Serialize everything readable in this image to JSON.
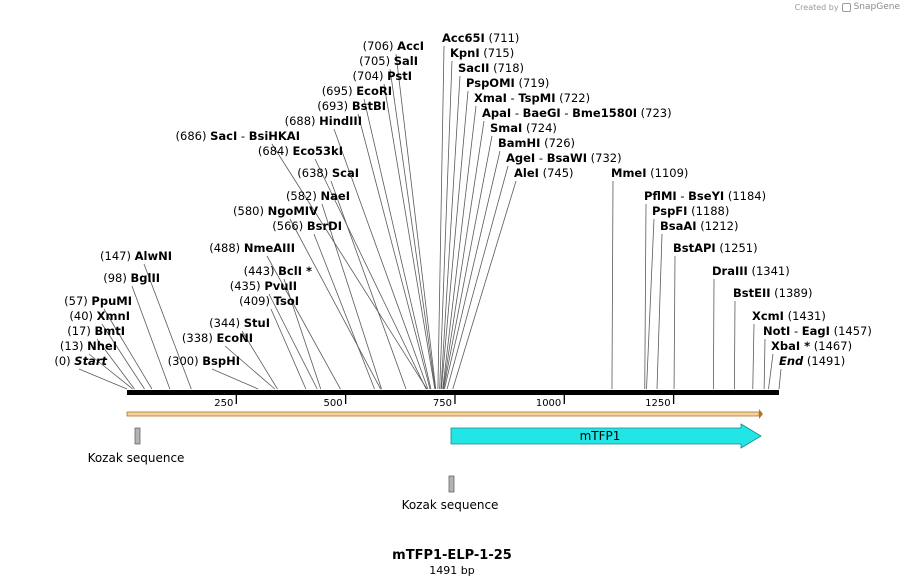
{
  "watermark": {
    "prefix": "Created by",
    "brand": "SnapGene"
  },
  "map": {
    "name": "mTFP1-ELP-1-25",
    "length_text": "1491 bp",
    "length": 1491,
    "ticks": [
      "250",
      "500",
      "750",
      "1000",
      "1250"
    ],
    "tick_values": [
      250,
      500,
      750,
      1000,
      1250
    ],
    "features": [
      {
        "label": "Kozak sequence",
        "start": 22,
        "end": 34,
        "type": "misc"
      },
      {
        "label": "mTFP1",
        "start": 745,
        "end": 1446,
        "type": "cds",
        "color": "#22e6e6"
      },
      {
        "label": "Kozak sequence",
        "start": 743,
        "end": 755,
        "type": "misc"
      }
    ],
    "colors": {
      "ruler": "#000000",
      "orf_fill": "#f5d3a0",
      "orf_line": "#b3742e",
      "misc_fill": "#b3b3b3"
    }
  },
  "sites": [
    {
      "pos": "(0)",
      "name": "Start",
      "italic": true,
      "bp": 0
    },
    {
      "pos": "(13)",
      "name": "NheI",
      "bp": 13
    },
    {
      "pos": "(17)",
      "name": "BmtI",
      "bp": 17
    },
    {
      "pos": "(40)",
      "name": "XmnI",
      "bp": 40
    },
    {
      "pos": "(57)",
      "name": "PpuMI",
      "bp": 57
    },
    {
      "pos": "(98)",
      "name": "BglII",
      "bp": 98
    },
    {
      "pos": "(147)",
      "name": "AlwNI",
      "bp": 147
    },
    {
      "pos": "(300)",
      "name": "BspHI",
      "bp": 300
    },
    {
      "pos": "(338)",
      "name": "EcoNI",
      "bp": 338
    },
    {
      "pos": "(344)",
      "name": "StuI",
      "bp": 344
    },
    {
      "pos": "(409)",
      "name": "TsoI",
      "bp": 409
    },
    {
      "pos": "(435)",
      "name": "PvuII",
      "bp": 435
    },
    {
      "pos": "(443)",
      "name": "BclI *",
      "bp": 443
    },
    {
      "pos": "(488)",
      "name": "NmeAIII",
      "bp": 488
    },
    {
      "pos": "(566)",
      "name": "BsrDI",
      "bp": 566
    },
    {
      "pos": "(580)",
      "name": "NgoMIV",
      "bp": 580
    },
    {
      "pos": "(582)",
      "name": "NaeI",
      "bp": 582
    },
    {
      "pos": "(638)",
      "name": "ScaI",
      "bp": 638
    },
    {
      "pos": "(684)",
      "name": "Eco53kI",
      "bp": 684
    },
    {
      "pos": "(686)",
      "name": "SacI",
      "extra": [
        "BsiHKAI"
      ],
      "bp": 686
    },
    {
      "pos": "(688)",
      "name": "HindIII",
      "bp": 688
    },
    {
      "pos": "(693)",
      "name": "BstBI",
      "bp": 693
    },
    {
      "pos": "(695)",
      "name": "EcoRI",
      "bp": 695
    },
    {
      "pos": "(704)",
      "name": "PstI",
      "bp": 704
    },
    {
      "pos": "(705)",
      "name": "SalI",
      "bp": 705
    },
    {
      "pos": "(706)",
      "name": "AccI",
      "bp": 706
    },
    {
      "pos": "(711)",
      "name": "Acc65I",
      "bp": 711
    },
    {
      "pos": "(715)",
      "name": "KpnI",
      "bp": 715
    },
    {
      "pos": "(718)",
      "name": "SacII",
      "bp": 718
    },
    {
      "pos": "(719)",
      "name": "PspOMI",
      "bp": 719
    },
    {
      "pos": "(722)",
      "name": "XmaI",
      "extra": [
        "TspMI"
      ],
      "bp": 722
    },
    {
      "pos": "(723)",
      "name": "ApaI",
      "extra": [
        "BaeGI",
        "Bme1580I"
      ],
      "bp": 723
    },
    {
      "pos": "(724)",
      "name": "SmaI",
      "bp": 724
    },
    {
      "pos": "(726)",
      "name": "BamHI",
      "bp": 726
    },
    {
      "pos": "(732)",
      "name": "AgeI",
      "extra": [
        "BsaWI"
      ],
      "bp": 732
    },
    {
      "pos": "(745)",
      "name": "AleI",
      "bp": 745
    },
    {
      "pos": "(1109)",
      "name": "MmeI",
      "bp": 1109
    },
    {
      "pos": "(1184)",
      "name": "PflMI",
      "extra": [
        "BseYI"
      ],
      "bp": 1184
    },
    {
      "pos": "(1188)",
      "name": "PspFI",
      "bp": 1188
    },
    {
      "pos": "(1212)",
      "name": "BsaAI",
      "bp": 1212
    },
    {
      "pos": "(1251)",
      "name": "BstAPI",
      "bp": 1251
    },
    {
      "pos": "(1341)",
      "name": "DraIII",
      "bp": 1341
    },
    {
      "pos": "(1389)",
      "name": "BstEII",
      "bp": 1389
    },
    {
      "pos": "(1431)",
      "name": "XcmI",
      "bp": 1431
    },
    {
      "pos": "(1457)",
      "name": "NotI",
      "extra": [
        "EagI"
      ],
      "bp": 1457
    },
    {
      "pos": "(1467)",
      "name": "XbaI *",
      "bp": 1467
    },
    {
      "pos": "(1491)",
      "name": "End",
      "italic": true,
      "bp": 1491
    }
  ]
}
